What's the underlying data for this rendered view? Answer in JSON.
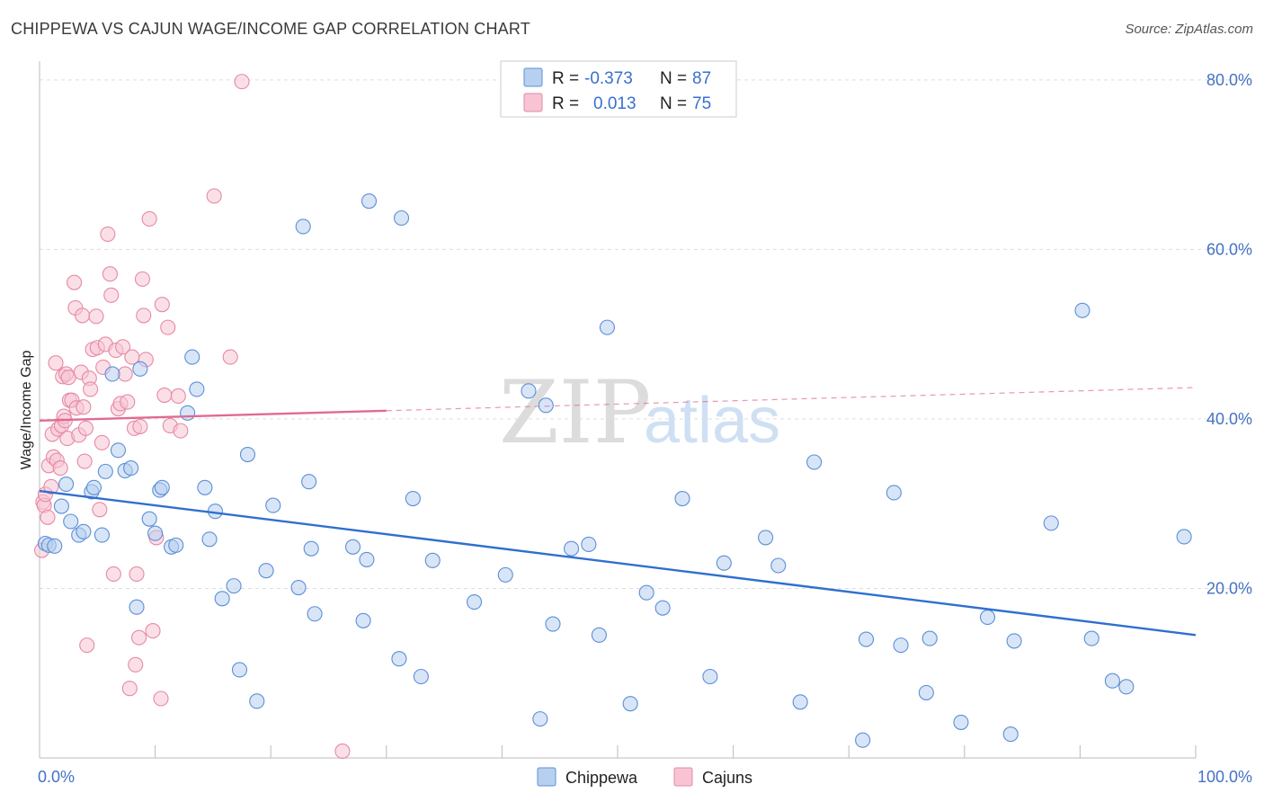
{
  "title": "CHIPPEWA VS CAJUN WAGE/INCOME GAP CORRELATION CHART",
  "source": "Source: ZipAtlas.com",
  "watermark": {
    "zip": "ZIP",
    "atlas": "atlas"
  },
  "colors": {
    "chippewa_fill": "#b8d0f0",
    "chippewa_stroke": "#5b8fd6",
    "chippewa_line": "#2f6fd0",
    "cajun_fill": "#f8c4d4",
    "cajun_stroke": "#e58aa6",
    "cajun_line": "#e06a94",
    "axis_text": "#4472c4",
    "grid": "#dddddd"
  },
  "legend": {
    "rows": [
      {
        "r_label": "R = ",
        "r_value": "-0.373",
        "n_label": "N = ",
        "n_value": "87"
      },
      {
        "r_label": "R = ",
        "r_value": "0.013",
        "n_label": "N = ",
        "n_value": "75"
      }
    ]
  },
  "chart_data": {
    "type": "scatter",
    "title": "CHIPPEWA VS CAJUN WAGE/INCOME GAP CORRELATION CHART",
    "xlabel": "",
    "ylabel": "Wage/Income Gap",
    "xlim": [
      0,
      100
    ],
    "ylim": [
      0,
      82
    ],
    "x_tick_labels": [
      "0.0%",
      "100.0%"
    ],
    "y_ticks": [
      20,
      40,
      60,
      80
    ],
    "y_tick_labels": [
      "20.0%",
      "40.0%",
      "60.0%",
      "80.0%"
    ],
    "grid": true,
    "legend_position": "top-center",
    "series": [
      {
        "name": "Chippewa",
        "trend": {
          "x": [
            0,
            100
          ],
          "y": [
            31.5,
            14.5
          ],
          "solid_until": 100
        },
        "points": [
          [
            0.5,
            25.3
          ],
          [
            0.8,
            25.1
          ],
          [
            1.3,
            25.0
          ],
          [
            1.9,
            29.7
          ],
          [
            2.3,
            32.3
          ],
          [
            2.7,
            27.9
          ],
          [
            3.4,
            26.3
          ],
          [
            3.8,
            26.7
          ],
          [
            4.5,
            31.4
          ],
          [
            4.7,
            31.9
          ],
          [
            5.4,
            26.3
          ],
          [
            5.7,
            33.8
          ],
          [
            6.3,
            45.3
          ],
          [
            6.8,
            36.3
          ],
          [
            7.4,
            33.9
          ],
          [
            7.9,
            34.2
          ],
          [
            8.4,
            17.8
          ],
          [
            8.7,
            45.9
          ],
          [
            9.5,
            28.2
          ],
          [
            10.0,
            26.5
          ],
          [
            10.4,
            31.6
          ],
          [
            10.6,
            31.9
          ],
          [
            11.4,
            24.9
          ],
          [
            11.8,
            25.1
          ],
          [
            12.8,
            40.7
          ],
          [
            13.2,
            47.3
          ],
          [
            13.6,
            43.5
          ],
          [
            14.3,
            31.9
          ],
          [
            14.7,
            25.8
          ],
          [
            15.2,
            29.1
          ],
          [
            15.8,
            18.8
          ],
          [
            16.8,
            20.3
          ],
          [
            17.3,
            10.4
          ],
          [
            18.0,
            35.8
          ],
          [
            18.8,
            6.7
          ],
          [
            19.6,
            22.1
          ],
          [
            20.2,
            29.8
          ],
          [
            22.4,
            20.1
          ],
          [
            22.8,
            62.7
          ],
          [
            23.3,
            32.6
          ],
          [
            23.5,
            24.7
          ],
          [
            23.8,
            17.0
          ],
          [
            27.1,
            24.9
          ],
          [
            28.0,
            16.2
          ],
          [
            28.3,
            23.4
          ],
          [
            28.5,
            65.7
          ],
          [
            31.1,
            11.7
          ],
          [
            31.3,
            63.7
          ],
          [
            32.3,
            30.6
          ],
          [
            33.0,
            9.6
          ],
          [
            34.0,
            23.3
          ],
          [
            37.6,
            18.4
          ],
          [
            40.3,
            21.6
          ],
          [
            42.3,
            43.3
          ],
          [
            43.3,
            4.6
          ],
          [
            43.8,
            41.6
          ],
          [
            44.4,
            15.8
          ],
          [
            46.0,
            24.7
          ],
          [
            47.5,
            25.2
          ],
          [
            48.4,
            14.5
          ],
          [
            49.1,
            50.8
          ],
          [
            51.1,
            6.4
          ],
          [
            52.5,
            19.5
          ],
          [
            53.9,
            17.7
          ],
          [
            55.6,
            30.6
          ],
          [
            58.0,
            9.6
          ],
          [
            59.2,
            23.0
          ],
          [
            62.8,
            26.0
          ],
          [
            63.9,
            22.7
          ],
          [
            65.8,
            6.6
          ],
          [
            67.0,
            34.9
          ],
          [
            71.2,
            2.1
          ],
          [
            71.5,
            14.0
          ],
          [
            73.9,
            31.3
          ],
          [
            74.5,
            13.3
          ],
          [
            76.7,
            7.7
          ],
          [
            77.0,
            14.1
          ],
          [
            79.7,
            4.2
          ],
          [
            82.0,
            16.6
          ],
          [
            84.0,
            2.8
          ],
          [
            84.3,
            13.8
          ],
          [
            87.5,
            27.7
          ],
          [
            90.2,
            52.8
          ],
          [
            91.0,
            14.1
          ],
          [
            92.8,
            9.1
          ],
          [
            94.0,
            8.4
          ],
          [
            99.0,
            26.1
          ]
        ]
      },
      {
        "name": "Cajuns",
        "trend": {
          "x": [
            0,
            100
          ],
          "y": [
            39.8,
            43.7
          ],
          "solid_until": 30
        },
        "points": [
          [
            0.2,
            24.5
          ],
          [
            0.3,
            30.2
          ],
          [
            0.4,
            29.8
          ],
          [
            0.5,
            31.1
          ],
          [
            0.7,
            28.4
          ],
          [
            0.8,
            34.5
          ],
          [
            1.0,
            32.0
          ],
          [
            1.1,
            38.2
          ],
          [
            1.2,
            35.5
          ],
          [
            1.4,
            46.6
          ],
          [
            1.5,
            35.1
          ],
          [
            1.6,
            38.8
          ],
          [
            1.8,
            34.2
          ],
          [
            1.9,
            39.2
          ],
          [
            2.0,
            45.0
          ],
          [
            2.1,
            40.3
          ],
          [
            2.2,
            39.8
          ],
          [
            2.3,
            45.3
          ],
          [
            2.4,
            37.7
          ],
          [
            2.5,
            44.9
          ],
          [
            2.6,
            42.2
          ],
          [
            2.8,
            42.2
          ],
          [
            3.0,
            56.1
          ],
          [
            3.1,
            53.1
          ],
          [
            3.2,
            41.3
          ],
          [
            3.4,
            38.1
          ],
          [
            3.6,
            45.5
          ],
          [
            3.7,
            52.2
          ],
          [
            3.8,
            41.4
          ],
          [
            3.9,
            35.0
          ],
          [
            4.0,
            38.9
          ],
          [
            4.1,
            13.3
          ],
          [
            4.3,
            44.8
          ],
          [
            4.4,
            43.5
          ],
          [
            4.6,
            48.2
          ],
          [
            4.9,
            52.1
          ],
          [
            5.0,
            48.4
          ],
          [
            5.2,
            29.3
          ],
          [
            5.4,
            37.2
          ],
          [
            5.5,
            46.1
          ],
          [
            5.7,
            48.8
          ],
          [
            5.9,
            61.8
          ],
          [
            6.1,
            57.1
          ],
          [
            6.2,
            54.6
          ],
          [
            6.4,
            21.7
          ],
          [
            6.6,
            48.1
          ],
          [
            6.8,
            41.2
          ],
          [
            7.0,
            41.8
          ],
          [
            7.2,
            48.5
          ],
          [
            7.4,
            45.3
          ],
          [
            7.6,
            42.0
          ],
          [
            7.8,
            8.2
          ],
          [
            8.0,
            47.3
          ],
          [
            8.2,
            38.9
          ],
          [
            8.3,
            11.0
          ],
          [
            8.4,
            21.7
          ],
          [
            8.6,
            14.2
          ],
          [
            8.7,
            39.1
          ],
          [
            8.9,
            56.5
          ],
          [
            9.0,
            52.2
          ],
          [
            9.2,
            47.0
          ],
          [
            9.5,
            63.6
          ],
          [
            9.8,
            15.0
          ],
          [
            10.1,
            26.0
          ],
          [
            10.5,
            7.0
          ],
          [
            10.6,
            53.5
          ],
          [
            10.8,
            42.8
          ],
          [
            11.1,
            50.8
          ],
          [
            11.3,
            39.2
          ],
          [
            12.0,
            42.7
          ],
          [
            12.2,
            38.6
          ],
          [
            15.1,
            66.3
          ],
          [
            16.5,
            47.3
          ],
          [
            17.5,
            79.8
          ],
          [
            26.2,
            0.8
          ]
        ]
      }
    ]
  },
  "bottom_legend": [
    {
      "label": "Chippewa"
    },
    {
      "label": "Cajuns"
    }
  ]
}
